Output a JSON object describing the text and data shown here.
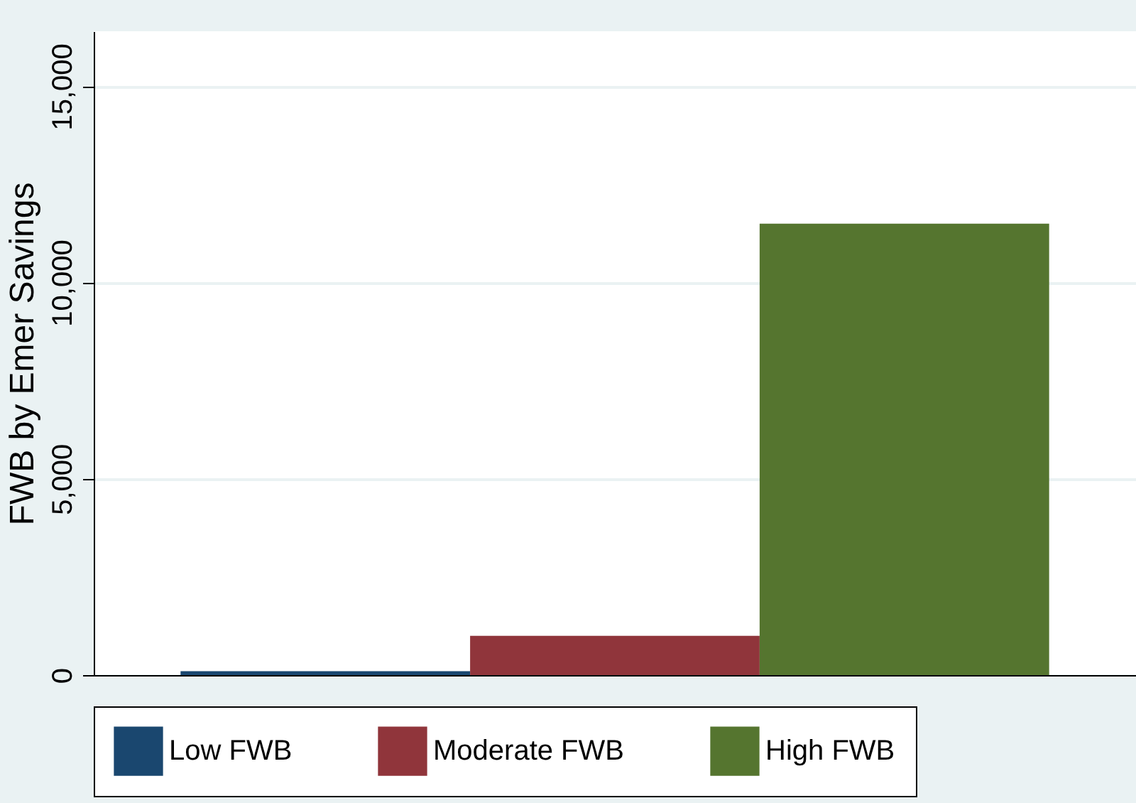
{
  "chart_data": {
    "type": "bar",
    "ylabel": "FWB by Emer Savings",
    "categories": [
      null
    ],
    "series": [
      {
        "name": "Low FWB",
        "color": "#1a476f",
        "values": [
          100
        ]
      },
      {
        "name": "Moderate FWB",
        "color": "#90353b",
        "values": [
          1000
        ]
      },
      {
        "name": "High FWB",
        "color": "#55752f",
        "values": [
          11500
        ]
      }
    ],
    "ylim": [
      0,
      16400
    ],
    "yticks": [
      0,
      {
        "value": 5000,
        "label": "5,000"
      },
      {
        "value": 10000,
        "label": "10,000"
      },
      {
        "value": 15000,
        "label": "15,000"
      }
    ],
    "grid": "y",
    "legend": "bottom"
  }
}
